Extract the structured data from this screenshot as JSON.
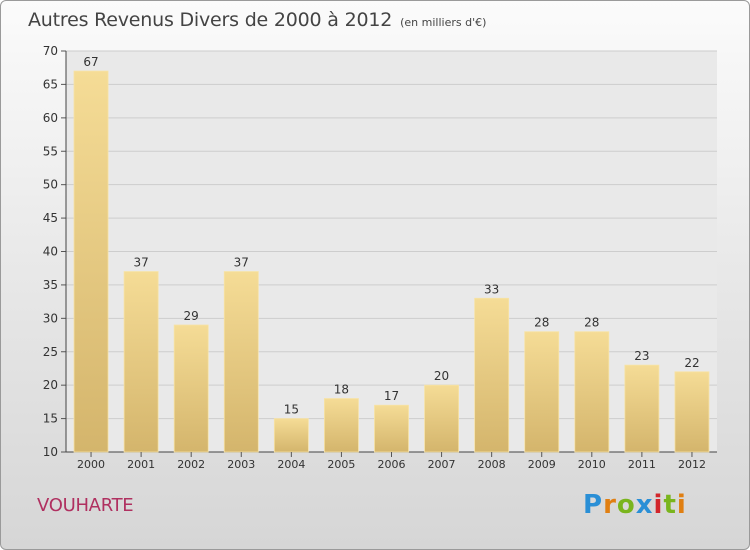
{
  "chart_data": {
    "type": "bar",
    "title": "Autres Revenus Divers de 2000 à 2012",
    "subtitle": "(en milliers d'€)",
    "categories": [
      "2000",
      "2001",
      "2002",
      "2003",
      "2004",
      "2005",
      "2006",
      "2007",
      "2008",
      "2009",
      "2010",
      "2011",
      "2012"
    ],
    "values": [
      67,
      37,
      29,
      37,
      15,
      18,
      17,
      20,
      33,
      28,
      28,
      23,
      22
    ],
    "ylim": [
      10,
      70
    ],
    "yticks": [
      10,
      15,
      20,
      25,
      30,
      35,
      40,
      45,
      50,
      55,
      60,
      65,
      70
    ],
    "xlabel": "",
    "ylabel": "",
    "grid": true,
    "bar_color": "#e8cf86",
    "label": "VOUHARTE"
  },
  "logo": {
    "parts": [
      "P",
      "r",
      "o",
      "x",
      "i",
      "t",
      "i"
    ]
  }
}
